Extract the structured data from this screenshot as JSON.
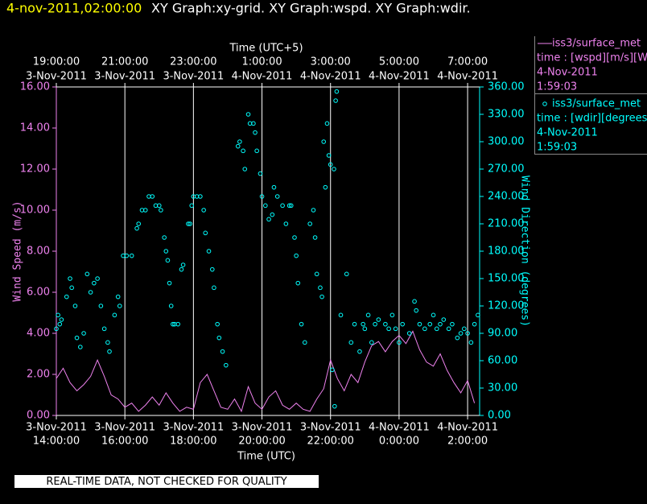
{
  "chart_data": {
    "type": "xy",
    "timestamp": "4-nov-2011,02:00:00",
    "title": "XY Graph:xy-grid.  XY Graph:wspd.  XY Graph:wdir.",
    "xlabel": "Time (UTC)",
    "x2label": "Time (UTC+5)",
    "ylabel": "Wind Speed (m/s)",
    "y2label": "Wind Direction (degrees)",
    "footer": "REAL-TIME DATA, NOT CHECKED FOR QUALITY",
    "grid": "x",
    "xlim": [
      14,
      26.35
    ],
    "xticks": [
      {
        "value": 14,
        "date": "3-Nov-2011",
        "label": "14:00:00"
      },
      {
        "value": 16,
        "date": "3-Nov-2011",
        "label": "16:00:00"
      },
      {
        "value": 18,
        "date": "3-Nov-2011",
        "label": "18:00:00"
      },
      {
        "value": 20,
        "date": "3-Nov-2011",
        "label": "20:00:00"
      },
      {
        "value": 22,
        "date": "3-Nov-2011",
        "label": "22:00:00"
      },
      {
        "value": 24,
        "date": "4-Nov-2011",
        "label": "0:00:00"
      },
      {
        "value": 26,
        "date": "4-Nov-2011",
        "label": "2:00:00"
      }
    ],
    "x2ticks": [
      {
        "value": 14,
        "label": "19:00:00",
        "date": "3-Nov-2011"
      },
      {
        "value": 16,
        "label": "21:00:00",
        "date": "3-Nov-2011"
      },
      {
        "value": 18,
        "label": "23:00:00",
        "date": "3-Nov-2011"
      },
      {
        "value": 20,
        "label": "1:00:00",
        "date": "4-Nov-2011"
      },
      {
        "value": 22,
        "label": "3:00:00",
        "date": "4-Nov-2011"
      },
      {
        "value": 24,
        "label": "5:00:00",
        "date": "4-Nov-2011"
      },
      {
        "value": 26,
        "label": "7:00:00",
        "date": "4-Nov-2011"
      }
    ],
    "ylim": [
      0,
      16
    ],
    "yticks": [
      {
        "value": 0,
        "label": "0.00"
      },
      {
        "value": 2,
        "label": "2.00"
      },
      {
        "value": 4,
        "label": "4.00"
      },
      {
        "value": 6,
        "label": "6.00"
      },
      {
        "value": 8,
        "label": "8.00"
      },
      {
        "value": 10,
        "label": "10.00"
      },
      {
        "value": 12,
        "label": "12.00"
      },
      {
        "value": 14,
        "label": "14.00"
      },
      {
        "value": 16,
        "label": "16.00"
      }
    ],
    "y2lim": [
      0,
      360
    ],
    "y2ticks": [
      {
        "value": 0,
        "label": "0.00"
      },
      {
        "value": 30,
        "label": "30.00"
      },
      {
        "value": 60,
        "label": "60.00"
      },
      {
        "value": 90,
        "label": "90.00"
      },
      {
        "value": 120,
        "label": "120.00"
      },
      {
        "value": 150,
        "label": "150.00"
      },
      {
        "value": 180,
        "label": "180.00"
      },
      {
        "value": 210,
        "label": "210.00"
      },
      {
        "value": 240,
        "label": "240.00"
      },
      {
        "value": 270,
        "label": "270.00"
      },
      {
        "value": 300,
        "label": "300.00"
      },
      {
        "value": 330,
        "label": "330.00"
      },
      {
        "value": 360,
        "label": "360.00"
      }
    ],
    "series": [
      {
        "name": "iss3/surface_met",
        "mark": "line",
        "color": "#ee82ee",
        "legend_lines": [
          "time : [wspd][m/s][Wind",
          "4-Nov-2011",
          "1:59:03"
        ],
        "x": [
          14.0,
          14.2,
          14.4,
          14.6,
          14.8,
          15.0,
          15.2,
          15.4,
          15.6,
          15.8,
          16.0,
          16.2,
          16.4,
          16.6,
          16.8,
          17.0,
          17.2,
          17.4,
          17.6,
          17.8,
          18.0,
          18.2,
          18.4,
          18.6,
          18.8,
          19.0,
          19.2,
          19.4,
          19.6,
          19.8,
          20.0,
          20.2,
          20.4,
          20.6,
          20.8,
          21.0,
          21.2,
          21.4,
          21.6,
          21.8,
          22.0,
          22.2,
          22.4,
          22.6,
          22.8,
          23.0,
          23.2,
          23.4,
          23.6,
          23.8,
          24.0,
          24.2,
          24.4,
          24.6,
          24.8,
          25.0,
          25.2,
          25.4,
          25.6,
          25.8,
          26.0,
          26.2
        ],
        "values": [
          1.8,
          2.3,
          1.6,
          1.2,
          1.5,
          1.9,
          2.7,
          1.9,
          1.0,
          0.8,
          0.4,
          0.6,
          0.2,
          0.5,
          0.9,
          0.5,
          1.1,
          0.6,
          0.2,
          0.4,
          0.3,
          1.6,
          2.0,
          1.2,
          0.4,
          0.3,
          0.8,
          0.2,
          1.4,
          0.6,
          0.3,
          0.9,
          1.2,
          0.5,
          0.3,
          0.6,
          0.3,
          0.2,
          0.8,
          1.3,
          2.7,
          1.8,
          1.2,
          2.0,
          1.6,
          2.6,
          3.4,
          3.6,
          3.1,
          3.6,
          3.9,
          3.5,
          4.1,
          3.2,
          2.6,
          2.4,
          3.0,
          2.2,
          1.6,
          1.1,
          1.7,
          0.6
        ]
      },
      {
        "name": "iss3/surface_met",
        "mark": "scatter",
        "axis": "y2",
        "color": "#00ffff",
        "legend_lines": [
          "time : [wdir][degrees][W",
          "4-Nov-2011",
          "1:59:03"
        ],
        "x": [
          14.0,
          14.05,
          14.1,
          14.15,
          14.3,
          14.4,
          14.45,
          14.55,
          14.6,
          14.7,
          14.8,
          14.9,
          15.0,
          15.1,
          15.2,
          15.3,
          15.4,
          15.5,
          15.55,
          15.7,
          15.8,
          15.85,
          15.95,
          16.05,
          16.2,
          16.35,
          16.4,
          16.5,
          16.6,
          16.7,
          16.8,
          16.9,
          17.0,
          17.05,
          17.15,
          17.2,
          17.25,
          17.3,
          17.35,
          17.4,
          17.45,
          17.55,
          17.65,
          17.7,
          17.85,
          17.9,
          17.95,
          18.0,
          18.1,
          18.2,
          18.3,
          18.35,
          18.45,
          18.55,
          18.6,
          18.7,
          18.75,
          18.85,
          18.95,
          19.3,
          19.35,
          19.45,
          19.5,
          19.6,
          19.65,
          19.75,
          19.8,
          19.85,
          19.95,
          20.0,
          20.1,
          20.2,
          20.3,
          20.35,
          20.45,
          20.6,
          20.7,
          20.8,
          20.85,
          20.95,
          21.0,
          21.05,
          21.15,
          21.25,
          21.4,
          21.5,
          21.55,
          21.6,
          21.7,
          21.75,
          21.8,
          21.85,
          21.9,
          21.95,
          22.0,
          22.05,
          22.1,
          22.12,
          22.15,
          22.18,
          22.3,
          22.47,
          22.6,
          22.7,
          22.85,
          22.95,
          23.0,
          23.1,
          23.2,
          23.3,
          23.4,
          23.6,
          23.7,
          23.8,
          23.9,
          24.0,
          24.1,
          24.3,
          24.45,
          24.5,
          24.6,
          24.75,
          24.9,
          25.0,
          25.1,
          25.2,
          25.3,
          25.45,
          25.55,
          25.7,
          25.8,
          25.9,
          26.0,
          26.1,
          26.2,
          26.3
        ],
        "values": [
          95,
          110,
          100,
          105,
          130,
          150,
          140,
          120,
          85,
          75,
          90,
          155,
          135,
          145,
          150,
          120,
          95,
          80,
          70,
          110,
          130,
          120,
          175,
          175,
          175,
          205,
          210,
          225,
          225,
          240,
          240,
          230,
          230,
          225,
          195,
          180,
          170,
          145,
          120,
          100,
          100,
          100,
          160,
          165,
          210,
          210,
          230,
          240,
          240,
          240,
          225,
          200,
          180,
          160,
          140,
          100,
          85,
          70,
          55,
          295,
          300,
          290,
          270,
          330,
          320,
          320,
          310,
          290,
          265,
          240,
          230,
          215,
          220,
          250,
          240,
          230,
          210,
          230,
          230,
          195,
          175,
          145,
          100,
          80,
          210,
          225,
          195,
          155,
          140,
          130,
          300,
          250,
          320,
          285,
          275,
          50,
          270,
          10,
          345,
          355,
          110,
          155,
          80,
          100,
          70,
          100,
          95,
          110,
          80,
          100,
          105,
          100,
          95,
          110,
          95,
          80,
          100,
          90,
          125,
          115,
          100,
          95,
          100,
          110,
          95,
          100,
          105,
          95,
          100,
          85,
          90,
          95,
          90,
          80,
          100,
          110
        ]
      }
    ]
  }
}
